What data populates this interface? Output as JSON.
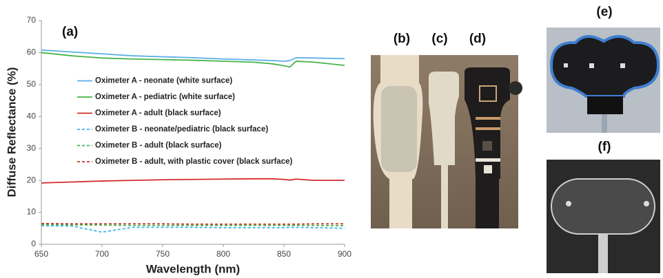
{
  "chart_data": {
    "type": "line",
    "panel_label": "(a)",
    "xlabel": "Wavelength (nm)",
    "ylabel": "Diffuse Reflectance (%)",
    "x": [
      650,
      675,
      700,
      725,
      750,
      775,
      800,
      825,
      840,
      850,
      855,
      860,
      875,
      900
    ],
    "series": [
      {
        "name": "Oximeter A - neonate (white surface)",
        "color": "#5aaee6",
        "linestyle": "solid",
        "values": [
          60.8,
          60.2,
          59.6,
          59.0,
          58.7,
          58.4,
          58.0,
          57.7,
          57.5,
          57.3,
          57.5,
          58.4,
          58.3,
          58.1
        ]
      },
      {
        "name": "Oximeter A - pediatric (white surface)",
        "color": "#47b44a",
        "linestyle": "solid",
        "values": [
          60.0,
          59.0,
          58.3,
          58.0,
          57.8,
          57.6,
          57.3,
          57.0,
          56.5,
          55.9,
          55.5,
          57.3,
          57.0,
          56.0
        ]
      },
      {
        "name": "Oximeter A - adult (black surface)",
        "color": "#d42a2a",
        "linestyle": "solid",
        "values": [
          19.2,
          19.5,
          19.8,
          20.0,
          20.2,
          20.3,
          20.4,
          20.5,
          20.5,
          20.3,
          20.1,
          20.4,
          20.0,
          20.0
        ]
      },
      {
        "name": "Oximeter B - neonate/pediatric (black surface)",
        "color": "#3cb4e6",
        "linestyle": "dashed",
        "values": [
          5.8,
          5.7,
          3.8,
          5.3,
          5.3,
          5.3,
          5.2,
          5.2,
          5.2,
          5.2,
          5.3,
          5.3,
          5.2,
          5.0
        ]
      },
      {
        "name": "Oximeter B - adult (black surface)",
        "color": "#47b44a",
        "linestyle": "dashed",
        "values": [
          6.2,
          6.1,
          6.0,
          5.9,
          5.9,
          5.9,
          5.9,
          5.9,
          5.9,
          5.9,
          5.9,
          5.9,
          5.9,
          5.8
        ]
      },
      {
        "name": "Oximeter B - adult, with plastic cover (black surface)",
        "color": "#c0392b",
        "linestyle": "dashed",
        "values": [
          6.5,
          6.4,
          6.4,
          6.4,
          6.4,
          6.3,
          6.3,
          6.3,
          6.3,
          6.3,
          6.3,
          6.3,
          6.4,
          6.4
        ]
      }
    ],
    "xlim": [
      650,
      900
    ],
    "xticks": [
      650,
      700,
      750,
      800,
      850,
      900
    ],
    "ylim": [
      0,
      70
    ],
    "yticks": [
      0,
      10,
      20,
      30,
      40,
      50,
      60,
      70
    ],
    "grid": false,
    "legend": "center left"
  },
  "photo_panels": [
    "(b)",
    "(c)",
    "(d)",
    "(e)",
    "(f)"
  ]
}
